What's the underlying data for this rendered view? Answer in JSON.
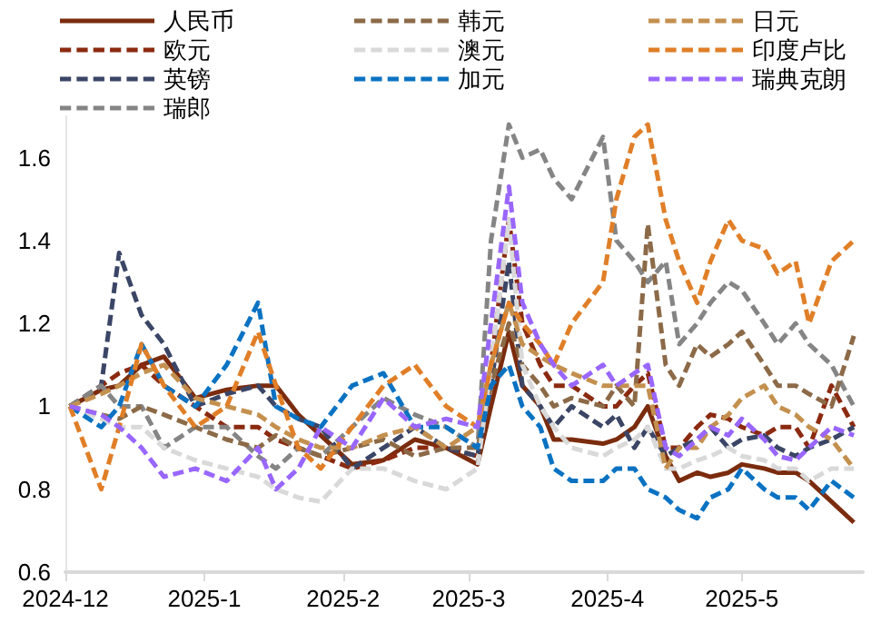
{
  "chart_data": {
    "type": "line",
    "legend": "top",
    "grid": false,
    "marker": "none",
    "x": [
      "2024-12-02",
      "2024-12-09",
      "2024-12-13",
      "2024-12-18",
      "2024-12-23",
      "2024-12-30",
      "2025-01-06",
      "2025-01-13",
      "2025-01-17",
      "2025-01-22",
      "2025-01-27",
      "2025-02-03",
      "2025-02-10",
      "2025-02-17",
      "2025-02-24",
      "2025-03-03",
      "2025-03-06",
      "2025-03-10",
      "2025-03-13",
      "2025-03-17",
      "2025-03-20",
      "2025-03-24",
      "2025-03-31",
      "2025-04-03",
      "2025-04-07",
      "2025-04-10",
      "2025-04-14",
      "2025-04-17",
      "2025-04-21",
      "2025-04-24",
      "2025-04-28",
      "2025-05-01",
      "2025-05-06",
      "2025-05-09",
      "2025-05-13",
      "2025-05-16",
      "2025-05-21",
      "2025-05-26"
    ],
    "xlim": [
      "2024-12-01",
      "2025-05-28"
    ],
    "xticks": [
      {
        "value": "2024-12",
        "label": "2024-12"
      },
      {
        "value": "2025-01",
        "label": "2025-1"
      },
      {
        "value": "2025-02",
        "label": "2025-2"
      },
      {
        "value": "2025-03",
        "label": "2025-3"
      },
      {
        "value": "2025-04",
        "label": "2025-4"
      },
      {
        "value": "2025-05",
        "label": "2025-5"
      }
    ],
    "ylim": [
      0.6,
      1.7
    ],
    "yticks": [
      0.6,
      0.8,
      1,
      1.2,
      1.4,
      1.6
    ],
    "series": [
      {
        "name": "人民币",
        "color": "#7b2c0e",
        "line_style": "solid",
        "values": [
          1.0,
          1.04,
          1.05,
          1.1,
          1.12,
          1.02,
          1.04,
          1.05,
          1.05,
          0.98,
          0.93,
          0.86,
          0.87,
          0.92,
          0.9,
          0.86,
          1.0,
          1.18,
          1.05,
          1.0,
          0.92,
          0.92,
          0.91,
          0.92,
          0.95,
          1.0,
          0.88,
          0.82,
          0.84,
          0.83,
          0.84,
          0.86,
          0.85,
          0.84,
          0.84,
          0.82,
          0.77,
          0.72
        ]
      },
      {
        "name": "欧元",
        "color": "#8b2a10",
        "line_style": "dashed",
        "values": [
          1.0,
          1.05,
          1.08,
          1.1,
          1.05,
          1.0,
          0.95,
          0.95,
          0.92,
          0.9,
          0.88,
          0.85,
          0.87,
          0.9,
          0.9,
          0.88,
          1.1,
          1.45,
          1.2,
          1.1,
          1.05,
          1.05,
          1.0,
          1.0,
          1.05,
          1.08,
          0.9,
          0.9,
          0.95,
          0.98,
          0.97,
          0.95,
          0.93,
          0.95,
          0.95,
          0.9,
          1.05,
          0.95
        ]
      },
      {
        "name": "英镑",
        "color": "#3b4566",
        "line_style": "dashed",
        "values": [
          1.0,
          1.05,
          1.37,
          1.22,
          1.15,
          1.0,
          1.03,
          1.05,
          1.0,
          0.97,
          0.95,
          0.85,
          0.9,
          0.95,
          0.9,
          0.88,
          1.05,
          1.35,
          1.05,
          1.0,
          0.95,
          1.0,
          0.95,
          0.98,
          0.9,
          0.95,
          0.88,
          0.9,
          0.92,
          0.95,
          0.9,
          0.92,
          0.93,
          0.9,
          0.88,
          0.9,
          0.92,
          0.95
        ]
      },
      {
        "name": "瑞郎",
        "color": "#858585",
        "line_style": "dashed",
        "values": [
          1.0,
          1.05,
          1.0,
          1.0,
          0.9,
          0.95,
          0.95,
          0.88,
          0.85,
          0.9,
          0.88,
          0.95,
          1.02,
          0.98,
          0.95,
          0.9,
          1.4,
          1.68,
          1.6,
          1.62,
          1.55,
          1.5,
          1.65,
          1.4,
          1.35,
          1.3,
          1.35,
          1.15,
          1.2,
          1.25,
          1.3,
          1.28,
          1.2,
          1.15,
          1.2,
          1.15,
          1.1,
          1.0
        ]
      },
      {
        "name": "韩元",
        "color": "#8c6a48",
        "line_style": "dashed",
        "values": [
          1.0,
          0.98,
          0.97,
          1.0,
          0.98,
          0.95,
          0.92,
          0.9,
          0.93,
          0.9,
          0.88,
          0.9,
          0.92,
          0.88,
          0.9,
          0.9,
          1.05,
          1.2,
          1.1,
          1.05,
          1.0,
          1.02,
          1.0,
          1.05,
          1.0,
          1.44,
          1.1,
          1.05,
          1.15,
          1.12,
          1.15,
          1.18,
          1.1,
          1.05,
          1.05,
          1.03,
          1.0,
          1.17
        ]
      },
      {
        "name": "澳元",
        "color": "#d9d9d9",
        "line_style": "dashed",
        "values": [
          1.0,
          0.97,
          0.95,
          0.95,
          0.9,
          0.87,
          0.85,
          0.83,
          0.8,
          0.78,
          0.77,
          0.85,
          0.85,
          0.82,
          0.8,
          0.85,
          1.1,
          1.45,
          1.1,
          1.0,
          0.95,
          0.9,
          0.88,
          0.9,
          0.92,
          0.95,
          0.85,
          0.85,
          0.87,
          0.88,
          0.9,
          0.88,
          0.87,
          0.85,
          0.85,
          0.82,
          0.85,
          0.85
        ]
      },
      {
        "name": "加元",
        "color": "#0a72c2",
        "line_style": "dashed",
        "values": [
          1.0,
          0.95,
          1.0,
          1.15,
          1.05,
          1.0,
          1.1,
          1.25,
          1.0,
          0.97,
          0.95,
          1.05,
          1.08,
          0.95,
          0.95,
          0.9,
          1.05,
          1.1,
          1.0,
          0.95,
          0.85,
          0.82,
          0.82,
          0.85,
          0.85,
          0.8,
          0.78,
          0.75,
          0.73,
          0.78,
          0.8,
          0.85,
          0.8,
          0.78,
          0.78,
          0.75,
          0.82,
          0.78
        ]
      },
      {
        "name": "日元",
        "color": "#c4904f",
        "line_style": "dashed",
        "values": [
          1.0,
          1.03,
          1.05,
          1.08,
          1.1,
          1.02,
          1.0,
          0.98,
          0.95,
          0.92,
          0.9,
          0.9,
          0.93,
          0.95,
          0.9,
          0.95,
          1.1,
          1.25,
          1.15,
          1.12,
          1.1,
          1.08,
          1.05,
          1.05,
          1.05,
          1.05,
          0.85,
          0.9,
          0.9,
          0.95,
          0.98,
          1.02,
          1.05,
          1.0,
          0.98,
          0.95,
          0.92,
          0.85
        ]
      },
      {
        "name": "印度卢比",
        "color": "#e07f28",
        "line_style": "dashed",
        "values": [
          1.0,
          0.8,
          0.95,
          1.15,
          1.05,
          0.95,
          1.0,
          1.18,
          1.05,
          0.9,
          0.85,
          0.95,
          1.05,
          1.1,
          1.0,
          0.95,
          1.1,
          1.25,
          1.2,
          1.15,
          1.1,
          1.2,
          1.3,
          1.5,
          1.65,
          1.68,
          1.45,
          1.35,
          1.25,
          1.35,
          1.45,
          1.4,
          1.38,
          1.32,
          1.35,
          1.2,
          1.35,
          1.4
        ]
      },
      {
        "name": "瑞典克朗",
        "color": "#9966ff",
        "line_style": "dashed",
        "values": [
          1.0,
          0.98,
          0.95,
          0.9,
          0.83,
          0.85,
          0.82,
          0.9,
          0.8,
          0.85,
          0.95,
          0.9,
          1.02,
          0.95,
          0.97,
          0.95,
          1.2,
          1.53,
          1.25,
          1.15,
          1.1,
          1.05,
          1.1,
          1.05,
          1.08,
          1.1,
          0.9,
          0.88,
          0.92,
          0.95,
          0.93,
          0.97,
          0.92,
          0.88,
          0.87,
          0.9,
          0.95,
          0.93
        ]
      }
    ]
  }
}
